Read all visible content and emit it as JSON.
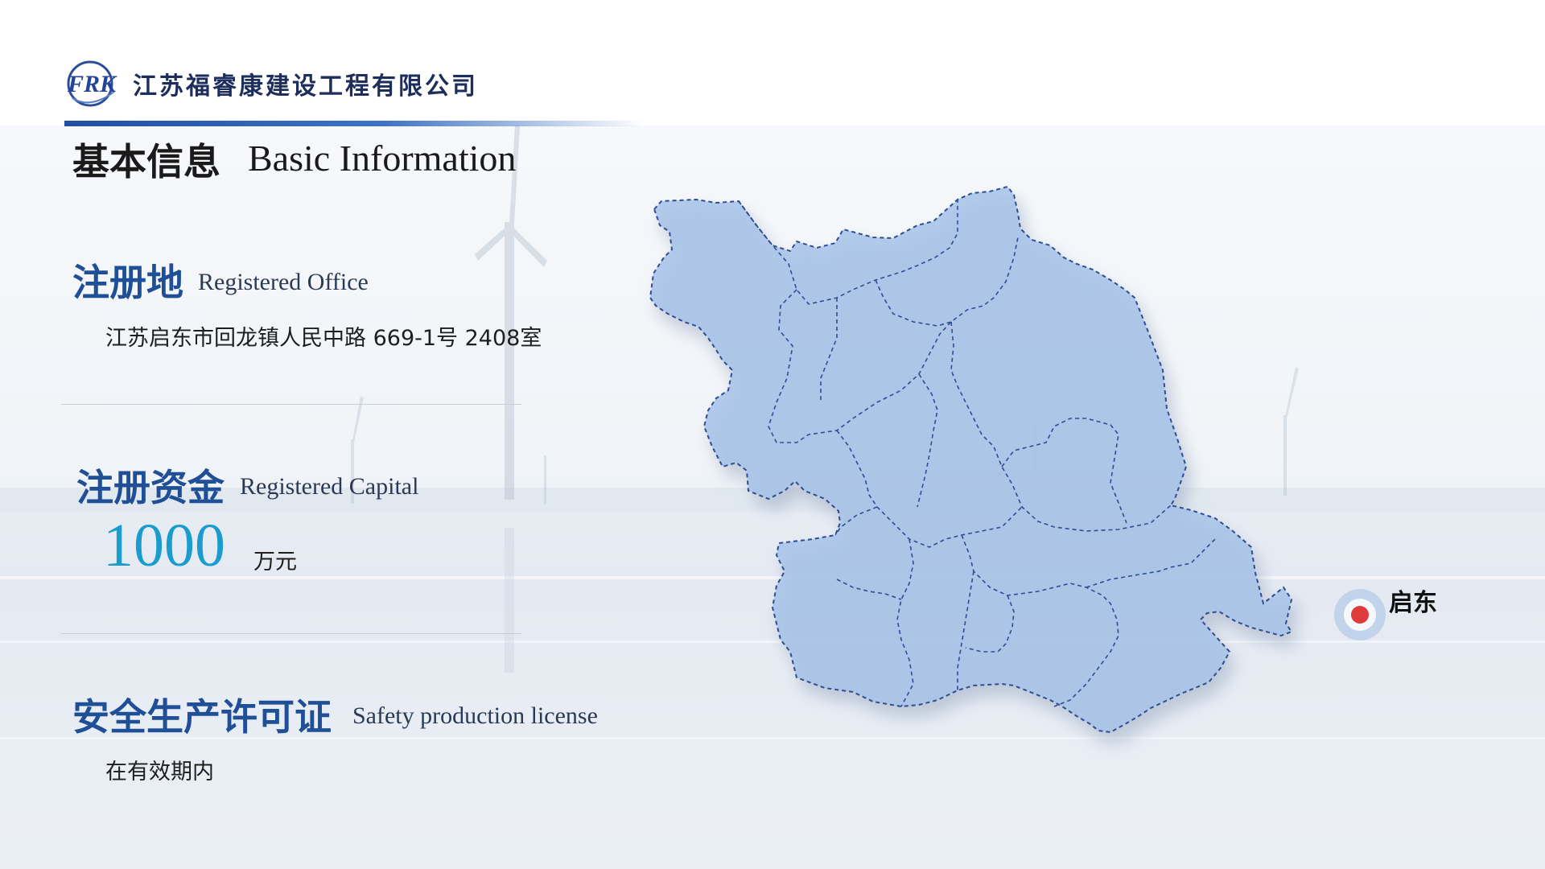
{
  "header": {
    "logo_text": "FRK",
    "company_name": "江苏福睿康建设工程有限公司"
  },
  "title": {
    "cn": "基本信息",
    "en": "Basic Information"
  },
  "registered_office": {
    "label_cn": "注册地",
    "label_en": "Registered Office",
    "value": "江苏启东市回龙镇人民中路 669-1号 2408室"
  },
  "registered_capital": {
    "label_cn": "注册资金",
    "label_en": "Registered Capital",
    "amount": "1000",
    "unit": "万元"
  },
  "safety_license": {
    "label_cn": "安全生产许可证",
    "label_en": "Safety production license",
    "value": "在有效期内"
  },
  "map": {
    "location_label": "启东",
    "marker_color": "#e03b3b",
    "region_fill": "#a9c4e8",
    "border_color": "#2e4e92"
  },
  "colors": {
    "accent_blue": "#1f4f96",
    "capital_blue": "#1a9ccf"
  }
}
